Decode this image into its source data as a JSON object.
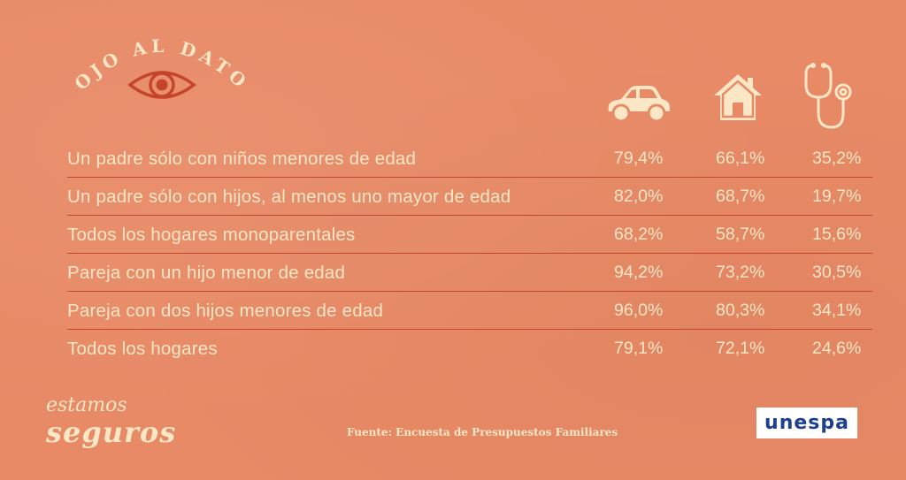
{
  "header": {
    "title": "OJO AL DATO",
    "eye_icon": "eye-icon"
  },
  "columns": [
    {
      "icon": "car-icon"
    },
    {
      "icon": "house-icon"
    },
    {
      "icon": "stethoscope-icon"
    }
  ],
  "rows": [
    {
      "label": "Un padre sólo con niños menores de edad",
      "values": [
        "79,4%",
        "66,1%",
        "35,2%"
      ]
    },
    {
      "label": "Un padre sólo con hijos, al menos uno mayor de edad",
      "values": [
        "82,0%",
        "68,7%",
        "19,7%"
      ]
    },
    {
      "label": "Todos los hogares monoparentales",
      "values": [
        "68,2%",
        "58,7%",
        "15,6%"
      ]
    },
    {
      "label": "Pareja con un hijo menor de edad",
      "values": [
        "94,2%",
        "73,2%",
        "30,5%"
      ]
    },
    {
      "label": "Pareja con dos hijos menores de edad",
      "values": [
        "96,0%",
        "80,3%",
        "34,1%"
      ]
    },
    {
      "label": "Todos los hogares",
      "values": [
        "79,1%",
        "72,1%",
        "24,6%"
      ]
    }
  ],
  "footer": {
    "brand_line1": "estamos",
    "brand_line2": "seguros",
    "source": "Fuente: Encuesta de Presupuestos Familiares",
    "logo": "unespa"
  },
  "colors": {
    "background": "#e88a66",
    "text": "#fbe6c6",
    "divider": "#c4452a",
    "eye": "#c4452a",
    "logo_blue": "#1d3f8f"
  }
}
